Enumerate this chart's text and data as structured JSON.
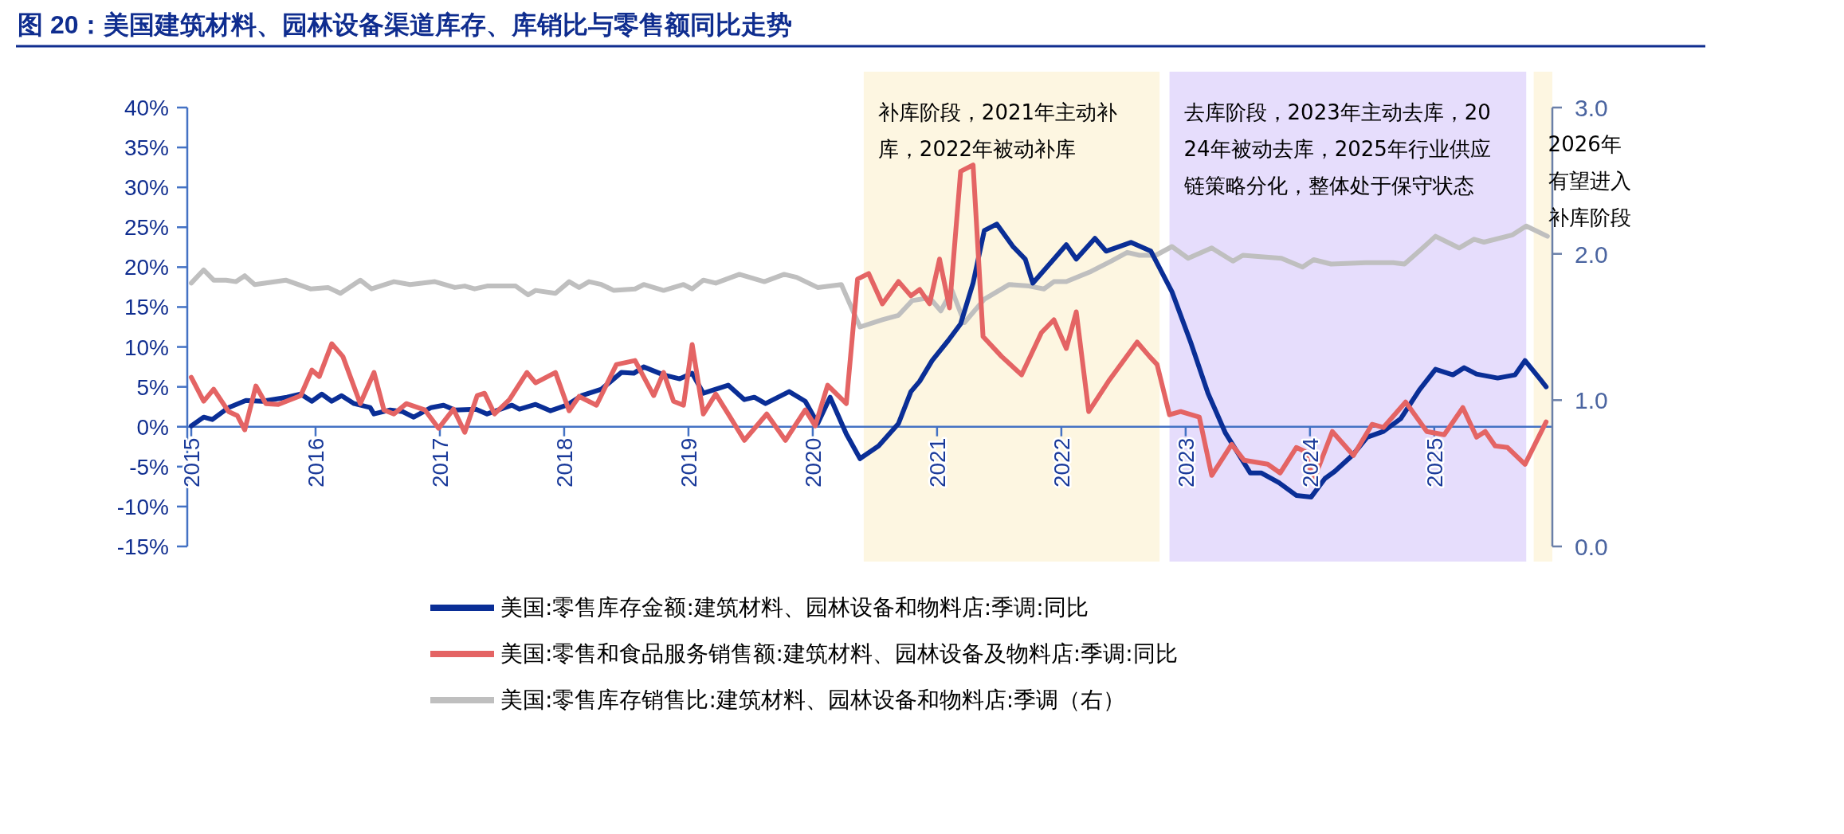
{
  "chart_data": {
    "type": "line",
    "title": "图 20：美国建筑材料、园林设备渠道库存、库销比与零售额同比走势",
    "xlim": [
      2015,
      2025.95
    ],
    "xticks": [
      2015,
      2016,
      2017,
      2018,
      2019,
      2020,
      2021,
      2022,
      2023,
      2024,
      2025
    ],
    "ylim": [
      -15,
      40
    ],
    "yticks": [
      {
        "value": -15,
        "label": "-15%"
      },
      {
        "value": -10,
        "label": "-10%"
      },
      {
        "value": -5,
        "label": "-5%"
      },
      {
        "value": 0,
        "label": "0%"
      },
      {
        "value": 5,
        "label": "5%"
      },
      {
        "value": 10,
        "label": "10%"
      },
      {
        "value": 15,
        "label": "15%"
      },
      {
        "value": 20,
        "label": "20%"
      },
      {
        "value": 25,
        "label": "25%"
      },
      {
        "value": 30,
        "label": "30%"
      },
      {
        "value": 35,
        "label": "35%"
      },
      {
        "value": 40,
        "label": "40%"
      }
    ],
    "y2lim": [
      0,
      3
    ],
    "y2ticks": [
      {
        "value": 0,
        "label": "0.0"
      },
      {
        "value": 1,
        "label": "1.0"
      },
      {
        "value": 2,
        "label": "2.0"
      },
      {
        "value": 3,
        "label": "3.0"
      }
    ],
    "legend": "bottom",
    "bands": [
      {
        "axis": "x",
        "from": 2020.41,
        "to": 2022.79,
        "label": "补库阶段，2021年主动补库，2022年被动补库",
        "color": "#fdf6e1"
      },
      {
        "axis": "x",
        "from": 2022.87,
        "to": 2025.74,
        "label": "去库阶段，2023年主动去库，2024年被动去库，2025年行业供应链策略分化，整体处于保守状态",
        "color": "#e6ddfc"
      },
      {
        "axis": "x",
        "from": 2025.8,
        "to": 2025.95,
        "label": "2026年有望进入补库阶段",
        "color": "#fdf6e1"
      }
    ],
    "series": [
      {
        "name": "美国:零售库存金额:建筑材料、园林设备和物料店:季调:同比",
        "color": "#0a2e96",
        "x": [
          2015.0,
          2015.1,
          2015.17,
          2015.3,
          2015.44,
          2015.57,
          2015.77,
          2015.88,
          2015.97,
          2016.05,
          2016.13,
          2016.21,
          2016.31,
          2016.44,
          2016.47,
          2016.6,
          2016.7,
          2016.79,
          2016.93,
          2017.03,
          2017.12,
          2017.29,
          2017.38,
          2017.58,
          2017.64,
          2017.77,
          2017.89,
          2018.02,
          2018.14,
          2018.3,
          2018.46,
          2018.56,
          2018.64,
          2018.8,
          2018.93,
          2019.03,
          2019.12,
          2019.32,
          2019.45,
          2019.53,
          2019.62,
          2019.81,
          2019.94,
          2020.04,
          2020.14,
          2020.27,
          2020.38,
          2020.53,
          2020.69,
          2020.79,
          2020.86,
          2020.96,
          2021.09,
          2021.19,
          2021.29,
          2021.38,
          2021.48,
          2021.61,
          2021.71,
          2021.77,
          2021.94,
          2022.04,
          2022.12,
          2022.27,
          2022.36,
          2022.56,
          2022.72,
          2022.89,
          2023.04,
          2023.18,
          2023.32,
          2023.52,
          2023.61,
          2023.75,
          2023.89,
          2024.01,
          2024.12,
          2024.2,
          2024.34,
          2024.46,
          2024.59,
          2024.73,
          2024.88,
          2025.01,
          2025.15,
          2025.24,
          2025.34,
          2025.51,
          2025.65,
          2025.73,
          2025.85,
          2025.9
        ],
        "values": [
          0.1,
          1.2,
          0.9,
          2.4,
          3.3,
          3.2,
          3.7,
          4.1,
          3.2,
          4.1,
          3.2,
          3.9,
          2.9,
          2.4,
          1.6,
          2.1,
          1.9,
          1.2,
          2.4,
          2.7,
          2.1,
          2.2,
          1.6,
          2.7,
          2.2,
          2.8,
          2.0,
          2.7,
          3.9,
          4.7,
          6.8,
          6.7,
          7.5,
          6.5,
          6.0,
          6.7,
          4.2,
          5.2,
          3.4,
          3.7,
          2.9,
          4.4,
          3.2,
          0.4,
          3.7,
          -0.9,
          -4.0,
          -2.4,
          0.4,
          4.4,
          5.7,
          8.3,
          10.8,
          12.9,
          18.0,
          24.6,
          25.4,
          22.6,
          21.0,
          18.0,
          21.0,
          22.8,
          21.0,
          23.6,
          22.0,
          23.1,
          22.0,
          16.9,
          10.6,
          4.2,
          -0.8,
          -5.8,
          -5.8,
          -7.0,
          -8.6,
          -8.8,
          -6.5,
          -5.6,
          -3.6,
          -1.3,
          -0.6,
          1.0,
          4.6,
          7.2,
          6.5,
          7.4,
          6.6,
          6.1,
          6.5,
          8.3,
          6.0,
          5.0
        ]
      },
      {
        "name": "美国:零售和食品服务销售额:建筑材料、园林设备及物料店:季调:同比",
        "color": "#e46464",
        "x": [
          2015.0,
          2015.1,
          2015.18,
          2015.3,
          2015.37,
          2015.43,
          2015.52,
          2015.6,
          2015.7,
          2015.88,
          2015.97,
          2016.03,
          2016.13,
          2016.22,
          2016.36,
          2016.47,
          2016.55,
          2016.63,
          2016.73,
          2016.88,
          2016.99,
          2017.11,
          2017.2,
          2017.3,
          2017.36,
          2017.44,
          2017.56,
          2017.7,
          2017.77,
          2017.93,
          2018.04,
          2018.12,
          2018.26,
          2018.42,
          2018.57,
          2018.72,
          2018.8,
          2018.88,
          2018.96,
          2019.03,
          2019.12,
          2019.22,
          2019.32,
          2019.45,
          2019.63,
          2019.78,
          2019.94,
          2020.02,
          2020.12,
          2020.27,
          2020.36,
          2020.45,
          2020.56,
          2020.69,
          2020.79,
          2020.86,
          2020.94,
          2021.02,
          2021.1,
          2021.19,
          2021.29,
          2021.37,
          2021.52,
          2021.68,
          2021.84,
          2021.94,
          2022.04,
          2022.12,
          2022.22,
          2022.38,
          2022.61,
          2022.71,
          2022.77,
          2022.87,
          2022.96,
          2023.11,
          2023.21,
          2023.37,
          2023.47,
          2023.66,
          2023.76,
          2023.89,
          2023.96,
          2024.03,
          2024.18,
          2024.35,
          2024.5,
          2024.59,
          2024.77,
          2024.94,
          2025.08,
          2025.23,
          2025.34,
          2025.41,
          2025.49,
          2025.59,
          2025.73,
          2025.9
        ],
        "values": [
          6.2,
          3.2,
          4.7,
          1.9,
          1.4,
          -0.4,
          5.1,
          2.9,
          2.8,
          3.9,
          7.1,
          6.3,
          10.4,
          8.8,
          2.9,
          6.8,
          2.1,
          1.6,
          2.9,
          2.1,
          -0.2,
          2.2,
          -0.7,
          3.9,
          4.2,
          1.6,
          3.4,
          6.8,
          5.5,
          6.8,
          2.0,
          3.8,
          2.7,
          7.8,
          8.3,
          3.9,
          6.8,
          3.2,
          2.7,
          10.3,
          1.6,
          4.1,
          1.6,
          -1.7,
          1.6,
          -1.7,
          2.1,
          0.1,
          5.2,
          2.9,
          18.5,
          19.2,
          15.4,
          18.2,
          16.4,
          17.2,
          15.4,
          21.0,
          14.9,
          32.0,
          32.8,
          11.3,
          8.8,
          6.5,
          11.8,
          13.4,
          9.8,
          14.4,
          1.9,
          5.7,
          10.6,
          8.8,
          7.8,
          1.5,
          1.9,
          1.2,
          -6.1,
          -2.2,
          -4.2,
          -4.7,
          -5.8,
          -2.6,
          -3.1,
          -6.7,
          -0.6,
          -3.6,
          0.3,
          -0.1,
          3.1,
          -0.6,
          -1.0,
          2.4,
          -1.3,
          -0.6,
          -2.4,
          -2.6,
          -4.7,
          0.6
        ]
      },
      {
        "name": "美国:零售库存销售比:建筑材料、园林设备和物料店:季调（右）",
        "color": "#bfbfbf",
        "axis": "y2",
        "x": [
          2015.0,
          2015.1,
          2015.18,
          2015.28,
          2015.36,
          2015.43,
          2015.51,
          2015.76,
          2015.96,
          2016.1,
          2016.2,
          2016.36,
          2016.45,
          2016.63,
          2016.76,
          2016.96,
          2017.12,
          2017.2,
          2017.28,
          2017.38,
          2017.61,
          2017.71,
          2017.77,
          2017.93,
          2018.04,
          2018.12,
          2018.2,
          2018.3,
          2018.4,
          2018.57,
          2018.64,
          2018.8,
          2018.96,
          2019.03,
          2019.12,
          2019.22,
          2019.41,
          2019.61,
          2019.77,
          2019.87,
          2020.04,
          2020.23,
          2020.38,
          2020.56,
          2020.69,
          2020.8,
          2020.94,
          2021.03,
          2021.12,
          2021.22,
          2021.38,
          2021.58,
          2021.74,
          2021.86,
          2021.94,
          2022.04,
          2022.24,
          2022.4,
          2022.53,
          2022.63,
          2022.76,
          2022.89,
          2023.02,
          2023.21,
          2023.38,
          2023.46,
          2023.77,
          2023.94,
          2024.03,
          2024.17,
          2024.45,
          2024.67,
          2024.76,
          2024.92,
          2025.01,
          2025.2,
          2025.32,
          2025.4,
          2025.63,
          2025.74,
          2025.91
        ],
        "values": [
          1.8,
          1.89,
          1.82,
          1.82,
          1.81,
          1.85,
          1.79,
          1.82,
          1.76,
          1.77,
          1.73,
          1.82,
          1.76,
          1.81,
          1.79,
          1.81,
          1.77,
          1.78,
          1.76,
          1.78,
          1.78,
          1.72,
          1.75,
          1.73,
          1.81,
          1.77,
          1.81,
          1.79,
          1.75,
          1.76,
          1.79,
          1.75,
          1.79,
          1.76,
          1.82,
          1.8,
          1.86,
          1.81,
          1.86,
          1.84,
          1.77,
          1.79,
          1.5,
          1.55,
          1.58,
          1.68,
          1.7,
          1.61,
          1.75,
          1.53,
          1.69,
          1.79,
          1.78,
          1.76,
          1.81,
          1.81,
          1.88,
          1.95,
          2.01,
          1.99,
          1.99,
          2.05,
          1.97,
          2.04,
          1.95,
          1.99,
          1.97,
          1.91,
          1.96,
          1.93,
          1.94,
          1.94,
          1.93,
          2.05,
          2.12,
          2.04,
          2.1,
          2.08,
          2.13,
          2.19,
          2.12
        ]
      }
    ]
  }
}
